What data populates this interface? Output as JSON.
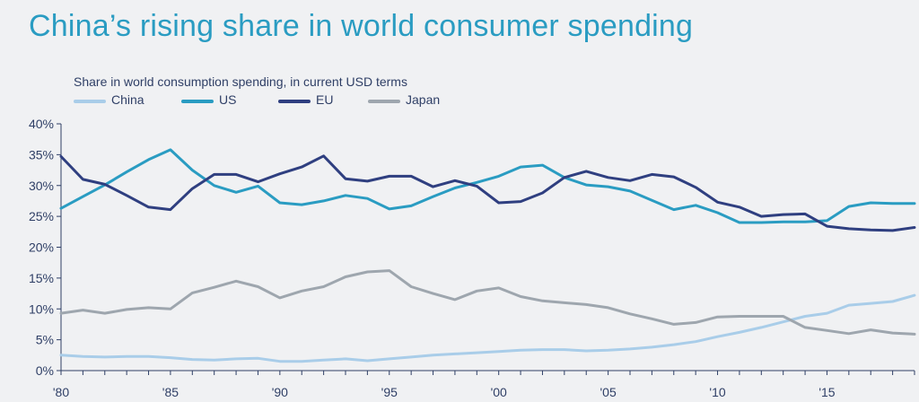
{
  "title": "China’s rising share in world consumer spending",
  "subtitle": "Share in world consumption spending, in current USD terms",
  "chart_data": {
    "type": "line",
    "title": "China’s rising share in world consumer spending",
    "subtitle": "Share in world consumption spending, in current USD terms",
    "xlabel": "",
    "ylabel": "",
    "x": [
      1980,
      1981,
      1982,
      1983,
      1984,
      1985,
      1986,
      1987,
      1988,
      1989,
      1990,
      1991,
      1992,
      1993,
      1994,
      1995,
      1996,
      1997,
      1998,
      1999,
      2000,
      2001,
      2002,
      2003,
      2004,
      2005,
      2006,
      2007,
      2008,
      2009,
      2010,
      2011,
      2012,
      2013,
      2014,
      2015,
      2016,
      2017,
      2018,
      2019
    ],
    "xlim": [
      1980,
      2019
    ],
    "ylim": [
      0,
      40
    ],
    "y_ticks": [
      0,
      5,
      10,
      15,
      20,
      25,
      30,
      35,
      40
    ],
    "y_tick_labels": [
      "0%",
      "5%",
      "10%",
      "15%",
      "20%",
      "25%",
      "30%",
      "35%",
      "40%"
    ],
    "x_ticks": [
      1980,
      1985,
      1990,
      1995,
      2000,
      2005,
      2010,
      2015
    ],
    "x_tick_labels": [
      "'80",
      "'85",
      "'90",
      "'95",
      "'00",
      "'05",
      "'10",
      "'15"
    ],
    "grid": false,
    "legend_position": "top-left",
    "series": [
      {
        "name": "China",
        "color": "#a9cde9",
        "values": [
          2.5,
          2.3,
          2.2,
          2.3,
          2.3,
          2.1,
          1.8,
          1.7,
          1.9,
          2.0,
          1.5,
          1.5,
          1.7,
          1.9,
          1.6,
          1.9,
          2.2,
          2.5,
          2.7,
          2.9,
          3.1,
          3.3,
          3.4,
          3.4,
          3.2,
          3.3,
          3.5,
          3.8,
          4.2,
          4.7,
          5.5,
          6.2,
          7.0,
          7.9,
          8.8,
          9.3,
          10.6,
          10.9,
          11.2,
          12.2
        ]
      },
      {
        "name": "US",
        "color": "#2a9cc2",
        "values": [
          26.3,
          28.2,
          30.1,
          32.2,
          34.2,
          35.8,
          32.5,
          30.0,
          28.9,
          29.9,
          27.2,
          26.9,
          27.5,
          28.4,
          27.9,
          26.2,
          26.7,
          28.2,
          29.6,
          30.5,
          31.5,
          33.0,
          33.3,
          31.3,
          30.1,
          29.8,
          29.1,
          27.6,
          26.1,
          26.8,
          25.6,
          24.0,
          24.0,
          24.1,
          24.1,
          24.3,
          26.6,
          27.2,
          27.1,
          27.1
        ]
      },
      {
        "name": "EU",
        "color": "#2f3f80",
        "values": [
          34.7,
          31.0,
          30.2,
          28.4,
          26.5,
          26.1,
          29.5,
          31.8,
          31.8,
          30.6,
          31.9,
          33.0,
          34.8,
          31.1,
          30.7,
          31.5,
          31.5,
          29.8,
          30.8,
          29.9,
          27.2,
          27.4,
          28.8,
          31.3,
          32.3,
          31.3,
          30.8,
          31.8,
          31.4,
          29.7,
          27.3,
          26.5,
          25.0,
          25.3,
          25.4,
          23.4,
          23.0,
          22.8,
          22.7,
          23.2
        ]
      },
      {
        "name": "Japan",
        "color": "#9ea6ae",
        "values": [
          9.3,
          9.8,
          9.3,
          9.9,
          10.2,
          10.0,
          12.6,
          13.5,
          14.5,
          13.6,
          11.8,
          12.9,
          13.6,
          15.2,
          16.0,
          16.2,
          13.6,
          12.5,
          11.5,
          12.9,
          13.4,
          12.0,
          11.3,
          11.0,
          10.7,
          10.2,
          9.2,
          8.4,
          7.5,
          7.8,
          8.7,
          8.8,
          8.8,
          8.8,
          7.0,
          6.5,
          6.0,
          6.6,
          6.1,
          5.9
        ]
      }
    ]
  }
}
